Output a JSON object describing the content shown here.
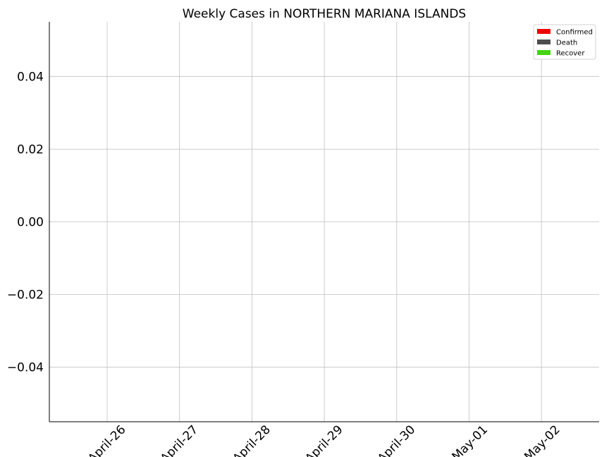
{
  "chart_data": {
    "type": "bar",
    "title": "Weekly Cases in NORTHERN MARIANA ISLANDS",
    "xlabel": "",
    "ylabel": "",
    "categories": [
      "April-26",
      "April-27",
      "April-28",
      "April-29",
      "April-30",
      "May-01",
      "May-02"
    ],
    "series": [
      {
        "name": "Confirmed",
        "color": "#ee0000",
        "values": [
          0,
          0,
          0,
          0,
          0,
          0,
          0
        ]
      },
      {
        "name": "Death",
        "color": "#4d4d4d",
        "values": [
          0,
          0,
          0,
          0,
          0,
          0,
          0
        ]
      },
      {
        "name": "Recover",
        "color": "#44d411",
        "values": [
          0,
          0,
          0,
          0,
          0,
          0,
          0
        ]
      }
    ],
    "ylim": [
      -0.055,
      0.055
    ],
    "yticks": [
      0.04,
      0.02,
      0.0,
      -0.02,
      -0.04
    ],
    "ytick_labels": [
      "0.04",
      "0.02",
      "0.00",
      "−0.02",
      "−0.04"
    ],
    "grid": true,
    "legend_position": "top-right"
  }
}
